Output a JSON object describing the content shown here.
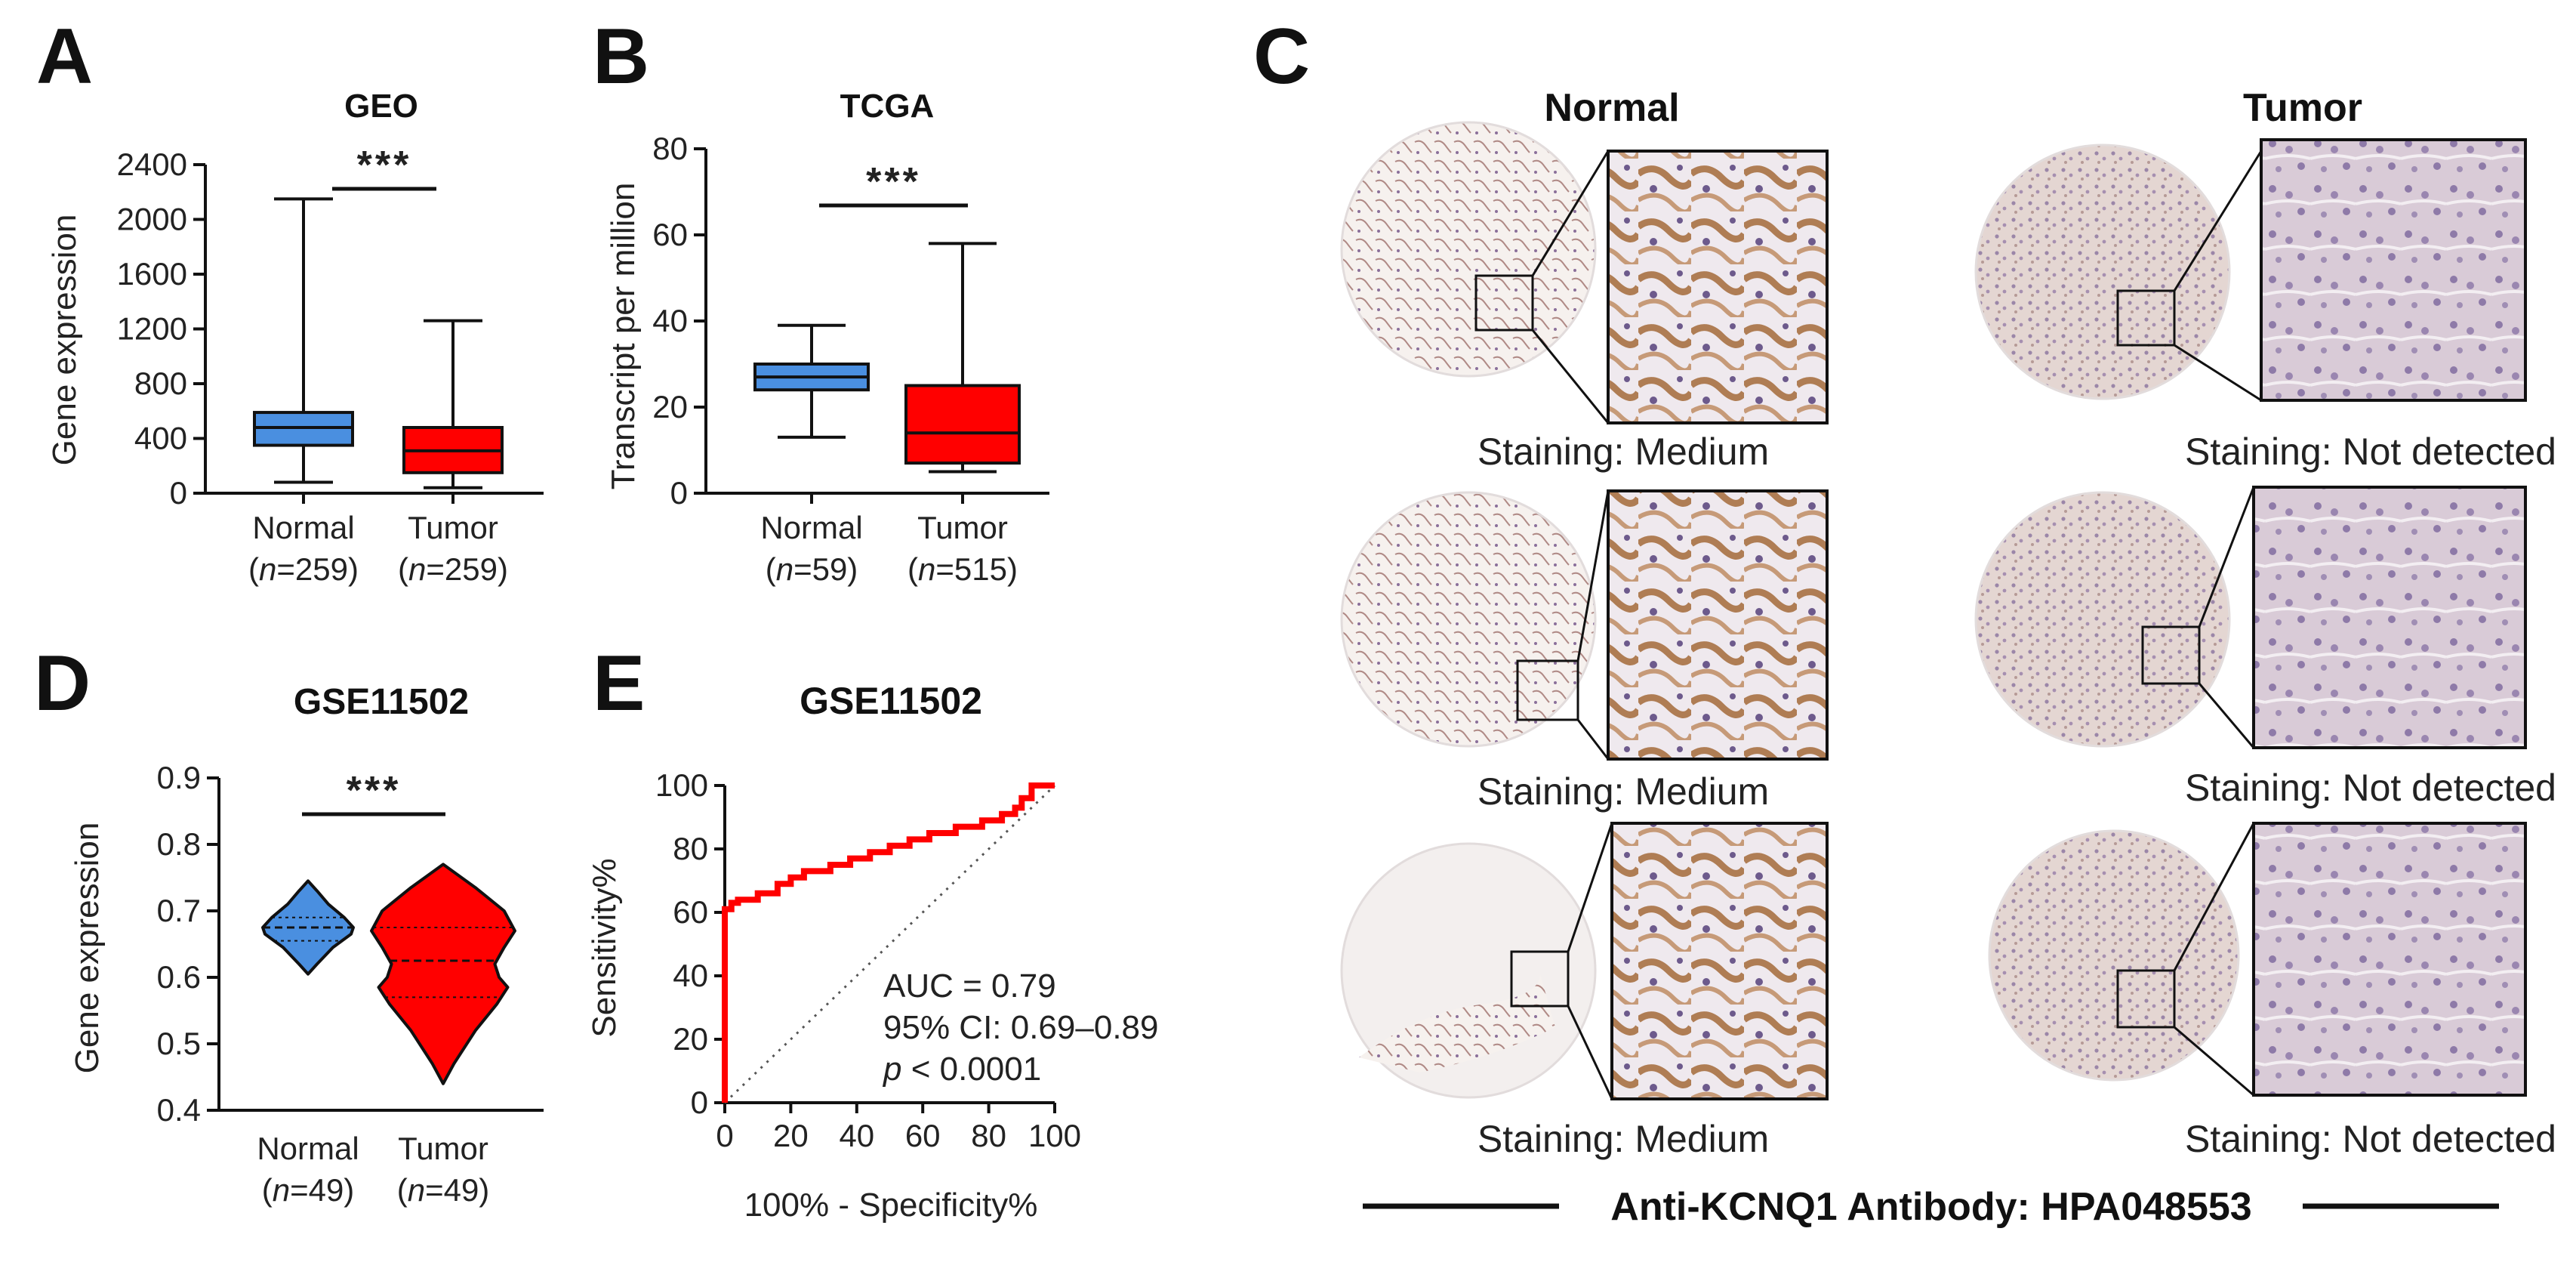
{
  "panels": {
    "A": {
      "letter": "A",
      "title": "GEO",
      "ylabel": "Gene expression",
      "significance": "***"
    },
    "B": {
      "letter": "B",
      "title": "TCGA",
      "ylabel": "Transcript per million",
      "significance": "***"
    },
    "C": {
      "letter": "C",
      "normal_header": "Normal",
      "tumor_header": "Tumor",
      "normal_staining": [
        "Staining: Medium",
        "Staining: Medium",
        "Staining: Medium"
      ],
      "tumor_staining": [
        "Staining: Not detected",
        "Staining: Not detected",
        "Staining: Not detected"
      ],
      "antibody_label": "Anti-KCNQ1 Antibody: HPA048553"
    },
    "D": {
      "letter": "D",
      "title": "GSE11502",
      "ylabel": "Gene expression",
      "significance": "***"
    },
    "E": {
      "letter": "E",
      "title": "GSE11502",
      "annotations": {
        "auc": "AUC = 0.79",
        "ci": "95% CI: 0.69–0.89",
        "p_letter": "p",
        "p_rest": " < 0.0001"
      }
    }
  },
  "colors": {
    "normal": "#4a8fe0",
    "tumor": "#ff0000",
    "line": "#111111"
  },
  "chart_data": [
    {
      "type": "box",
      "title": "GEO",
      "xlabel": "",
      "ylabel": "Gene expression",
      "ylim": [
        0,
        2400
      ],
      "yticks": [
        0,
        400,
        800,
        1200,
        1600,
        2000,
        2400
      ],
      "categories": [
        {
          "name": "Normal",
          "n": "259",
          "min": 80,
          "q1": 350,
          "median": 480,
          "q3": 590,
          "max": 2150
        },
        {
          "name": "Tumor",
          "n": "259",
          "min": 40,
          "q1": 150,
          "median": 310,
          "q3": 480,
          "max": 1260
        }
      ],
      "significance": "***"
    },
    {
      "type": "box",
      "title": "TCGA",
      "xlabel": "",
      "ylabel": "Transcript per million",
      "ylim": [
        0,
        80
      ],
      "yticks": [
        0,
        20,
        40,
        60,
        80
      ],
      "categories": [
        {
          "name": "Normal",
          "n": "59",
          "min": 13,
          "q1": 24,
          "median": 27,
          "q3": 30,
          "max": 39
        },
        {
          "name": "Tumor",
          "n": "515",
          "min": 5,
          "q1": 7,
          "median": 14,
          "q3": 25,
          "max": 58
        }
      ],
      "significance": "***"
    },
    {
      "type": "violin",
      "title": "GSE11502",
      "xlabel": "",
      "ylabel": "Gene expression",
      "ylim": [
        0.4,
        0.9
      ],
      "yticks": [
        0.4,
        0.5,
        0.6,
        0.7,
        0.8,
        0.9
      ],
      "categories": [
        {
          "name": "Normal",
          "n": "49",
          "min": 0.605,
          "q1": 0.655,
          "median": 0.675,
          "q3": 0.69,
          "max": 0.745
        },
        {
          "name": "Tumor",
          "n": "49",
          "min": 0.44,
          "q1": 0.57,
          "median": 0.625,
          "q3": 0.675,
          "max": 0.77
        }
      ],
      "significance": "***"
    },
    {
      "type": "line",
      "title": "GSE11502",
      "xlabel": "100% - Specificity%",
      "ylabel": "Sensitivity%",
      "xlim": [
        0,
        100
      ],
      "ylim": [
        0,
        100
      ],
      "xticks": [
        0,
        20,
        40,
        60,
        80,
        100
      ],
      "yticks": [
        0,
        20,
        40,
        60,
        80,
        100
      ],
      "series": [
        {
          "name": "ROC",
          "x": [
            0,
            0,
            2,
            2,
            4,
            4,
            10,
            10,
            16,
            16,
            20,
            20,
            24,
            24,
            32,
            32,
            38,
            38,
            44,
            44,
            50,
            50,
            56,
            56,
            62,
            62,
            70,
            70,
            78,
            78,
            84,
            84,
            88,
            88,
            90,
            90,
            93,
            93,
            100
          ],
          "y": [
            0,
            61,
            61,
            63,
            63,
            64,
            64,
            66,
            66,
            69,
            69,
            71,
            71,
            73,
            73,
            75,
            75,
            77,
            77,
            79,
            79,
            81,
            81,
            83,
            83,
            85,
            85,
            87,
            87,
            89,
            89,
            91,
            91,
            93,
            93,
            96,
            96,
            100,
            100
          ]
        }
      ],
      "reference_line": {
        "x": [
          0,
          100
        ],
        "y": [
          0,
          100
        ]
      },
      "auc": 0.79,
      "ci": [
        0.69,
        0.89
      ],
      "p": "< 0.0001"
    }
  ]
}
